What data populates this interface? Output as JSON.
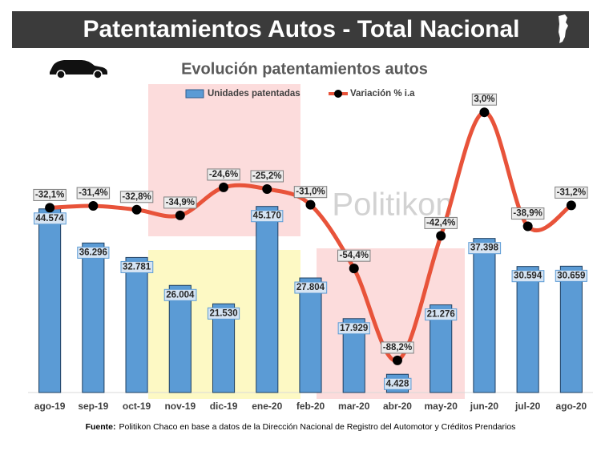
{
  "chart_data": {
    "type": "bar",
    "header": "Patentamientos Autos - Total Nacional",
    "title": "Evolución patentamientos autos",
    "watermark": "Politikon",
    "source_label": "Fuente:",
    "source": "Politikon Chaco en base a datos de la Dirección Nacional de Registro del Automotor y Créditos Prendarios",
    "categories": [
      "ago-19",
      "sep-19",
      "oct-19",
      "nov-19",
      "dic-19",
      "ene-20",
      "feb-20",
      "mar-20",
      "abr-20",
      "may-20",
      "jun-20",
      "jul-20",
      "ago-20"
    ],
    "ylim": [
      0,
      70000
    ],
    "y2lim": [
      -100,
      6
    ],
    "series": [
      {
        "name": "Unidades patentadas",
        "type": "bar",
        "color": "#5b9bd5",
        "values": [
          44574,
          36296,
          32781,
          26004,
          21530,
          45170,
          27804,
          17929,
          4428,
          21276,
          37398,
          30594,
          30659
        ],
        "value_labels": [
          "44.574",
          "36.296",
          "32.781",
          "26.004",
          "21.530",
          "45.170",
          "27.804",
          "17.929",
          "4.428",
          "21.276",
          "37.398",
          "30.594",
          "30.659"
        ]
      },
      {
        "name": "Variación % i.a",
        "type": "line",
        "axis": "y2",
        "color": "#e8533a",
        "values": [
          -32.1,
          -31.4,
          -32.8,
          -34.9,
          -24.6,
          -25.2,
          -31.0,
          -54.4,
          -88.2,
          -42.4,
          3.0,
          -38.9,
          -31.2
        ],
        "value_labels": [
          "-32,1%",
          "-31,4%",
          "-32,8%",
          "-34,9%",
          "-24,6%",
          "-25,2%",
          "-31,0%",
          "-54,4%",
          "-88,2%",
          "-42,4%",
          "3,0%",
          "-38,9%",
          "-31,2%"
        ]
      }
    ]
  }
}
